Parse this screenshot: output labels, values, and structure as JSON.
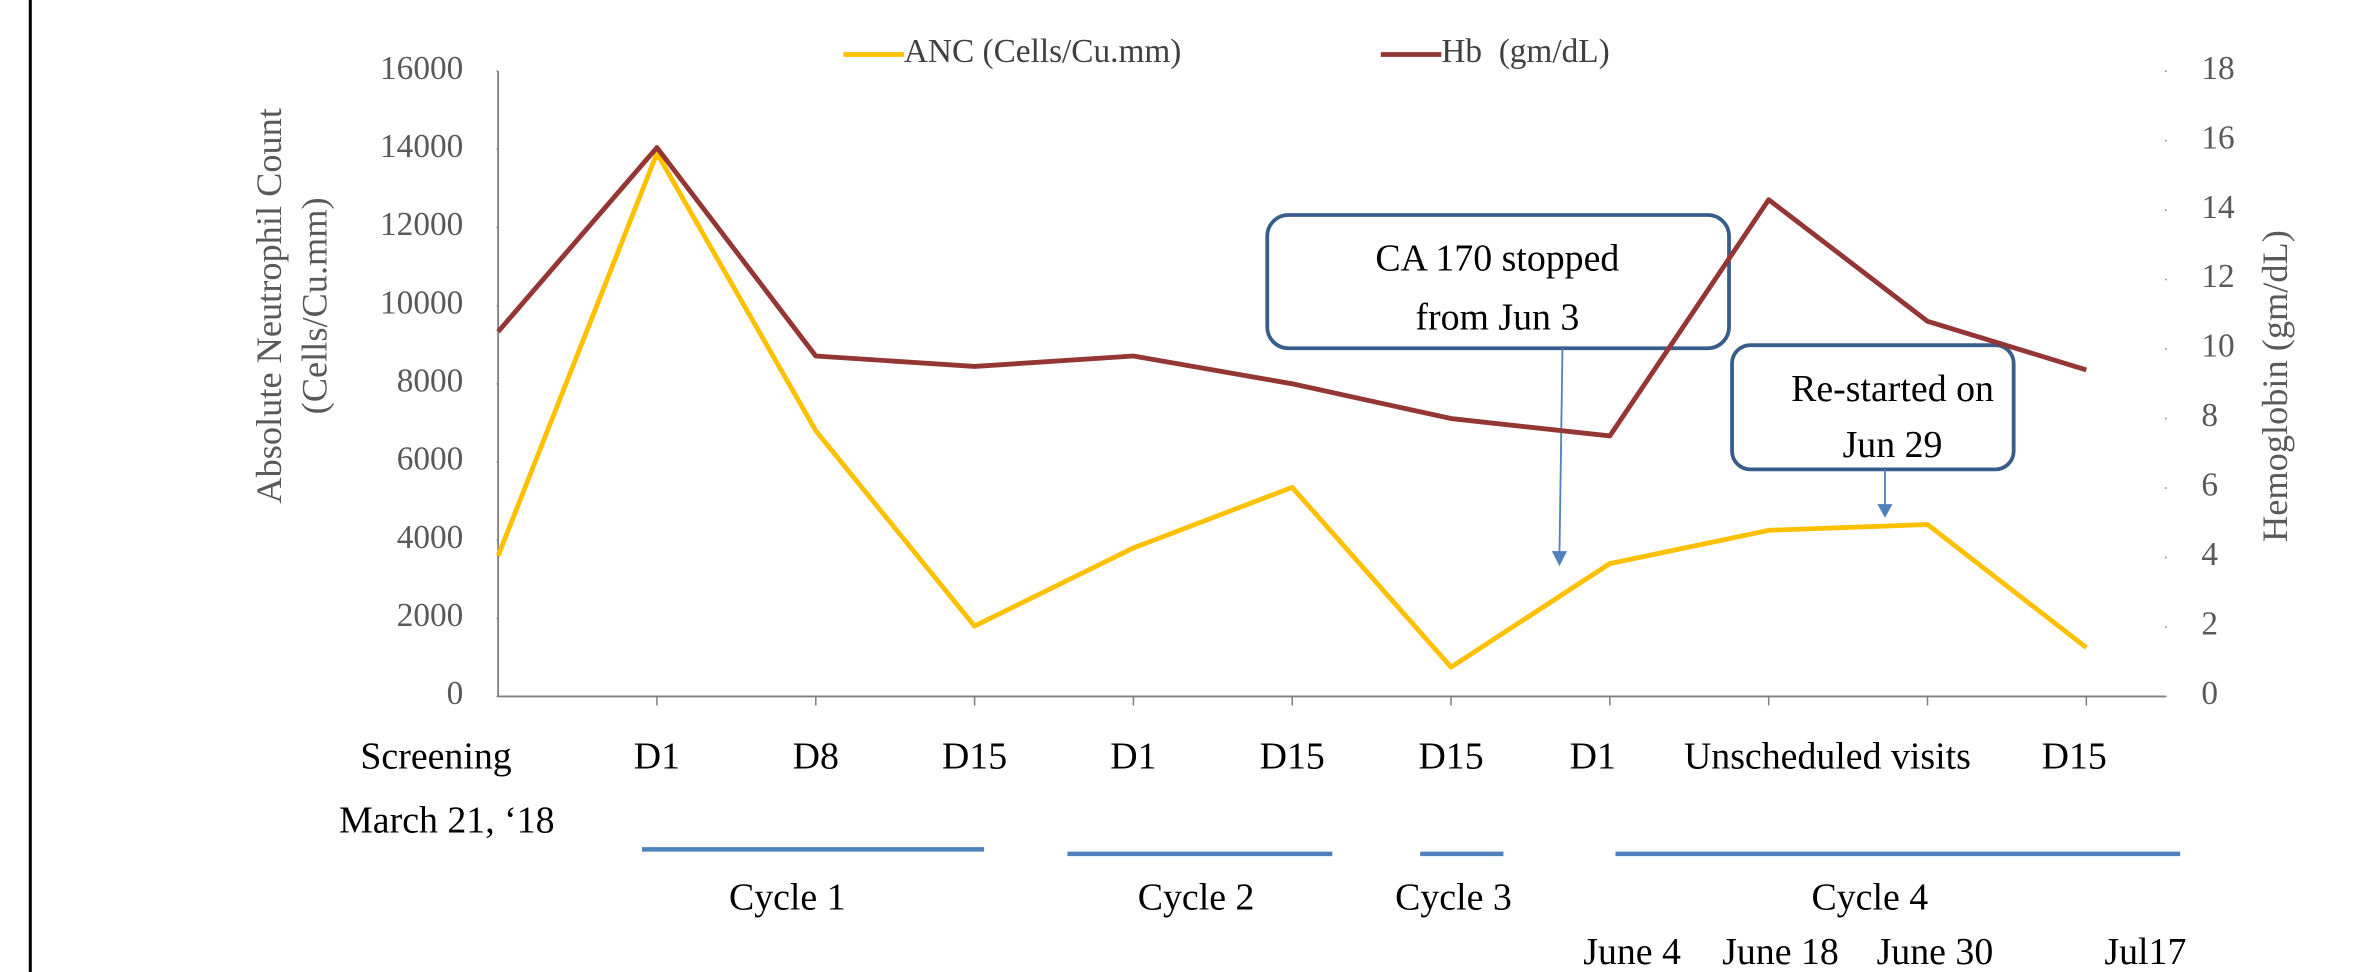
{
  "chart_data": {
    "type": "line",
    "categories": [
      "Screening",
      "D1",
      "D8",
      "D15",
      "D1",
      "D15",
      "D15",
      "D1",
      "Unscheduled visits",
      null,
      "D15"
    ],
    "screening_date": "March 21, ‘18",
    "visit_dates": [
      "June 4",
      "June 18",
      "June 30",
      "Jul17"
    ],
    "cycles": [
      "Cycle 1",
      "Cycle 2",
      "Cycle 3",
      "Cycle 4"
    ],
    "y_label": [
      "Absolute Neutrophil Count",
      "(Cells/Cu.mm)"
    ],
    "y2_label": "Hemoglobin (gm/dL)",
    "series": [
      {
        "name": "ANC (Cells/Cu.mm)",
        "color": "#FFC000",
        "values": [
          3600,
          13900,
          6800,
          1800,
          3800,
          5350,
          750,
          3400,
          4250,
          4400,
          1250
        ]
      },
      {
        "name": "Hb  (gm/dL)",
        "color": "#943634",
        "axis": "y2",
        "values": [
          10.5,
          15.8,
          9.8,
          9.5,
          9.8,
          9.0,
          8.0,
          7.5,
          14.3,
          10.8,
          9.4
        ]
      }
    ],
    "ylim": [
      0,
      16000
    ],
    "yticks": [
      0,
      2000,
      4000,
      6000,
      8000,
      10000,
      12000,
      14000,
      16000
    ],
    "y2lim": [
      0,
      18
    ],
    "y2ticks": [
      0,
      2,
      4,
      6,
      8,
      10,
      12,
      14,
      16,
      18
    ],
    "annotations": [
      {
        "lines": [
          "CA 170 stopped",
          "from Jun 3"
        ]
      },
      {
        "lines": [
          "Re-started on",
          "Jun 29"
        ]
      }
    ]
  }
}
